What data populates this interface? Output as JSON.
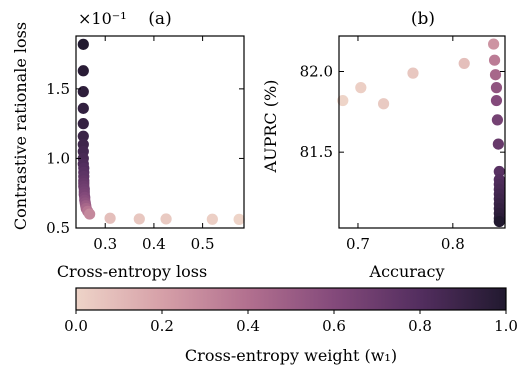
{
  "chart_data": [
    {
      "type": "scatter",
      "panel_label": "(a)",
      "xlabel": "Cross-entropy loss",
      "ylabel": "Contrastive rationale loss",
      "y_scale_text": "×10⁻¹",
      "xlim": [
        0.24,
        0.585
      ],
      "ylim": [
        0.5,
        1.88
      ],
      "xticks": [
        0.3,
        0.4,
        0.5
      ],
      "xtick_labels": [
        "0.3",
        "0.4",
        "0.5"
      ],
      "yticks": [
        0.5,
        1.0,
        1.5
      ],
      "ytick_labels": [
        "0.5",
        "1.0",
        "1.5"
      ],
      "points": [
        {
          "x": 0.255,
          "y": 1.82,
          "w": 1.0
        },
        {
          "x": 0.255,
          "y": 1.63,
          "w": 0.97
        },
        {
          "x": 0.255,
          "y": 1.48,
          "w": 0.95
        },
        {
          "x": 0.255,
          "y": 1.36,
          "w": 0.93
        },
        {
          "x": 0.255,
          "y": 1.25,
          "w": 0.92
        },
        {
          "x": 0.255,
          "y": 1.16,
          "w": 0.9
        },
        {
          "x": 0.255,
          "y": 1.1,
          "w": 0.88
        },
        {
          "x": 0.255,
          "y": 1.05,
          "w": 0.86
        },
        {
          "x": 0.255,
          "y": 1.0,
          "w": 0.84
        },
        {
          "x": 0.255,
          "y": 0.96,
          "w": 0.82
        },
        {
          "x": 0.256,
          "y": 0.93,
          "w": 0.8
        },
        {
          "x": 0.256,
          "y": 0.9,
          "w": 0.78
        },
        {
          "x": 0.256,
          "y": 0.87,
          "w": 0.76
        },
        {
          "x": 0.256,
          "y": 0.84,
          "w": 0.74
        },
        {
          "x": 0.256,
          "y": 0.82,
          "w": 0.72
        },
        {
          "x": 0.256,
          "y": 0.8,
          "w": 0.7
        },
        {
          "x": 0.257,
          "y": 0.78,
          "w": 0.68
        },
        {
          "x": 0.257,
          "y": 0.76,
          "w": 0.66
        },
        {
          "x": 0.257,
          "y": 0.74,
          "w": 0.64
        },
        {
          "x": 0.258,
          "y": 0.72,
          "w": 0.61
        },
        {
          "x": 0.258,
          "y": 0.7,
          "w": 0.58
        },
        {
          "x": 0.259,
          "y": 0.68,
          "w": 0.55
        },
        {
          "x": 0.26,
          "y": 0.66,
          "w": 0.5
        },
        {
          "x": 0.261,
          "y": 0.64,
          "w": 0.45
        },
        {
          "x": 0.264,
          "y": 0.62,
          "w": 0.38
        },
        {
          "x": 0.268,
          "y": 0.6,
          "w": 0.3
        },
        {
          "x": 0.31,
          "y": 0.57,
          "w": 0.08
        },
        {
          "x": 0.37,
          "y": 0.565,
          "w": 0.05
        },
        {
          "x": 0.425,
          "y": 0.565,
          "w": 0.04
        },
        {
          "x": 0.52,
          "y": 0.563,
          "w": 0.02
        },
        {
          "x": 0.575,
          "y": 0.562,
          "w": 0.0
        }
      ]
    },
    {
      "type": "scatter",
      "panel_label": "(b)",
      "xlabel": "Accuracy",
      "ylabel": "AUPRC (%)",
      "xlim": [
        0.68,
        0.855
      ],
      "ylim": [
        81.03,
        82.22
      ],
      "xticks": [
        0.7,
        0.8
      ],
      "xtick_labels": [
        "0.7",
        "0.8"
      ],
      "yticks": [
        81.5,
        82.0
      ],
      "ytick_labels": [
        "81.5",
        "82.0"
      ],
      "points": [
        {
          "x": 0.684,
          "y": 81.82,
          "w": 0.0
        },
        {
          "x": 0.703,
          "y": 81.9,
          "w": 0.02
        },
        {
          "x": 0.727,
          "y": 81.8,
          "w": 0.04
        },
        {
          "x": 0.758,
          "y": 81.99,
          "w": 0.05
        },
        {
          "x": 0.812,
          "y": 82.05,
          "w": 0.08
        },
        {
          "x": 0.843,
          "y": 82.17,
          "w": 0.25
        },
        {
          "x": 0.844,
          "y": 82.07,
          "w": 0.35
        },
        {
          "x": 0.845,
          "y": 81.98,
          "w": 0.45
        },
        {
          "x": 0.846,
          "y": 81.9,
          "w": 0.55
        },
        {
          "x": 0.846,
          "y": 81.82,
          "w": 0.6
        },
        {
          "x": 0.847,
          "y": 81.7,
          "w": 0.66
        },
        {
          "x": 0.848,
          "y": 81.55,
          "w": 0.72
        },
        {
          "x": 0.849,
          "y": 81.38,
          "w": 0.78
        },
        {
          "x": 0.849,
          "y": 81.33,
          "w": 0.8
        },
        {
          "x": 0.849,
          "y": 81.3,
          "w": 0.82
        },
        {
          "x": 0.849,
          "y": 81.27,
          "w": 0.84
        },
        {
          "x": 0.849,
          "y": 81.24,
          "w": 0.86
        },
        {
          "x": 0.849,
          "y": 81.21,
          "w": 0.88
        },
        {
          "x": 0.849,
          "y": 81.18,
          "w": 0.9
        },
        {
          "x": 0.849,
          "y": 81.15,
          "w": 0.92
        },
        {
          "x": 0.849,
          "y": 81.12,
          "w": 0.94
        },
        {
          "x": 0.849,
          "y": 81.09,
          "w": 0.96
        },
        {
          "x": 0.849,
          "y": 81.07,
          "w": 1.0
        }
      ]
    }
  ],
  "colorbar": {
    "label": "Cross-entropy weight (w₁)",
    "ticks": [
      0.0,
      0.2,
      0.4,
      0.6,
      0.8,
      1.0
    ],
    "tick_labels": [
      "0.0",
      "0.2",
      "0.4",
      "0.6",
      "0.8",
      "1.0"
    ],
    "colors": [
      "#eed4c8",
      "#d6a0a8",
      "#b2708f",
      "#844a7b",
      "#532e5f",
      "#21192f"
    ]
  }
}
